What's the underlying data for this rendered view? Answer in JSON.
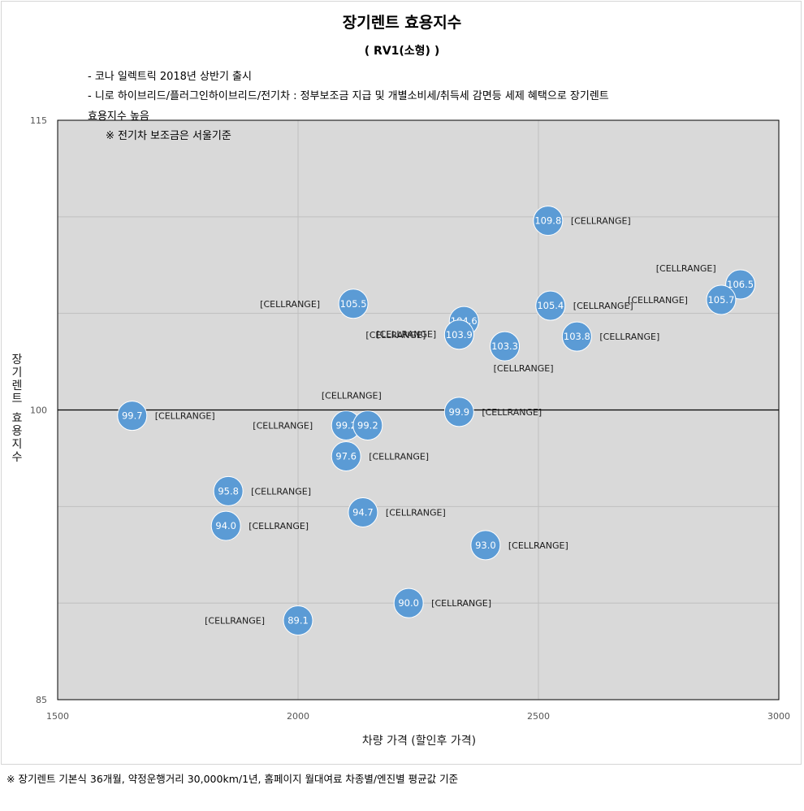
{
  "chart_data": {
    "type": "scatter",
    "title": "장기렌트 효용지수",
    "subtitle": "( RV1(소형) )",
    "xlabel": "차량 가격 (할인후 가격)",
    "ylabel": "장기렌트 효용지수",
    "xlim": [
      1500,
      3000
    ],
    "ylim": [
      85,
      115
    ],
    "xticks": [
      "1500",
      "2000",
      "2500",
      "3000"
    ],
    "yticks": [
      "85",
      "100",
      "115"
    ],
    "grid": true,
    "reference_line_y": 100,
    "notes": [
      "- 코나 일렉트릭 2018년 상반기 출시",
      "- 니로 하이브리드/플러그인하이브리드/전기차 : 정부보조금 지급 및 개별소비세/취득세 감면등 세제 혜택으로 장기렌트",
      "효용지수 높음",
      "※ 전기차 보조금은 서울기준"
    ],
    "footer": "※ 장기렌트 기본식 36개월, 약정운행거리 30,000km/1년, 홈페이지 월대여료 차종별/엔진별 평균값 기준",
    "range_text": "[CELLRANGE]",
    "points": [
      {
        "x": 2520,
        "y": 109.8,
        "label": "109.8",
        "range_pos": "right"
      },
      {
        "x": 2920,
        "y": 106.5,
        "label": "106.5",
        "range_pos": "top-left"
      },
      {
        "x": 2880,
        "y": 105.7,
        "label": "105.7",
        "range_pos": "left"
      },
      {
        "x": 2115,
        "y": 105.5,
        "label": "105.5",
        "range_pos": "left"
      },
      {
        "x": 2525,
        "y": 105.4,
        "label": "105.4",
        "range_pos": "right"
      },
      {
        "x": 2345,
        "y": 104.6,
        "label": "104.6",
        "range_pos": "left-low"
      },
      {
        "x": 2335,
        "y": 103.9,
        "label": "103.9",
        "range_pos": "left"
      },
      {
        "x": 2580,
        "y": 103.8,
        "label": "103.8",
        "range_pos": "right"
      },
      {
        "x": 2430,
        "y": 103.3,
        "label": "103.3",
        "range_pos": "below"
      },
      {
        "x": 1655,
        "y": 99.7,
        "label": "99.7",
        "range_pos": "right"
      },
      {
        "x": 2335,
        "y": 99.9,
        "label": "99.9",
        "range_pos": "right"
      },
      {
        "x": 2100,
        "y": 99.2,
        "label": "99.2",
        "range_pos": "left"
      },
      {
        "x": 2145,
        "y": 99.2,
        "label": "99.2",
        "range_pos": "above-left"
      },
      {
        "x": 2100,
        "y": 97.6,
        "label": "97.6",
        "range_pos": "right"
      },
      {
        "x": 1855,
        "y": 95.8,
        "label": "95.8",
        "range_pos": "right"
      },
      {
        "x": 2135,
        "y": 94.7,
        "label": "94.7",
        "range_pos": "right"
      },
      {
        "x": 1850,
        "y": 94.0,
        "label": "94.0",
        "range_pos": "right"
      },
      {
        "x": 2390,
        "y": 93.0,
        "label": "93.0",
        "range_pos": "right"
      },
      {
        "x": 2230,
        "y": 90.0,
        "label": "90.0",
        "range_pos": "right"
      },
      {
        "x": 2000,
        "y": 89.1,
        "label": "89.1",
        "range_pos": "left"
      }
    ],
    "colors": {
      "plot_bg": "#d9d9d9",
      "bubble": "#5b9bd5",
      "grid": "#bfbfbf",
      "axis": "#000000"
    }
  }
}
